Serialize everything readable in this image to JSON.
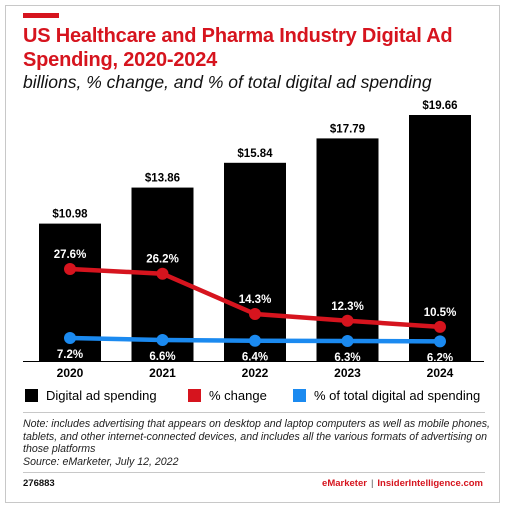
{
  "header": {
    "title": "US Healthcare and Pharma Industry Digital Ad Spending, 2020-2024",
    "subtitle": "billions, % change, and % of total digital ad spending"
  },
  "colors": {
    "accent": "#d6141e",
    "bar": "#000000",
    "change_line": "#d6141e",
    "share_line": "#1b8af0"
  },
  "chart_data": {
    "type": "bar",
    "categories": [
      "2020",
      "2021",
      "2022",
      "2023",
      "2024"
    ],
    "series": [
      {
        "name": "Digital ad spending",
        "type": "bar",
        "values": [
          10.98,
          13.86,
          15.84,
          17.79,
          19.66
        ],
        "labels": [
          "$10.98",
          "$13.86",
          "$15.84",
          "$17.79",
          "$19.66"
        ]
      },
      {
        "name": "% change",
        "type": "line",
        "values": [
          27.6,
          26.2,
          14.3,
          12.3,
          10.5
        ],
        "labels": [
          "27.6%",
          "26.2%",
          "14.3%",
          "12.3%",
          "10.5%"
        ]
      },
      {
        "name": "% of total digital ad spending",
        "type": "line",
        "values": [
          7.2,
          6.6,
          6.4,
          6.3,
          6.2
        ],
        "labels": [
          "7.2%",
          "6.6%",
          "6.4%",
          "6.3%",
          "6.2%"
        ]
      }
    ],
    "legend_position": "bottom",
    "grid": false
  },
  "legend": {
    "items": [
      {
        "label": "Digital ad spending",
        "color": "#000000"
      },
      {
        "label": "% change",
        "color": "#d6141e"
      },
      {
        "label": "% of total digital ad spending",
        "color": "#1b8af0"
      }
    ]
  },
  "footnote": {
    "note": "Note: includes advertising that appears on desktop and laptop computers as well as mobile phones, tablets, and other internet-connected devices, and includes all the various formats of advertising on those platforms",
    "source": "Source: eMarketer, July 12, 2022"
  },
  "footer": {
    "chart_id": "276883",
    "brand_1": "eMarketer",
    "separator": "|",
    "brand_2": "InsiderIntelligence.com"
  }
}
